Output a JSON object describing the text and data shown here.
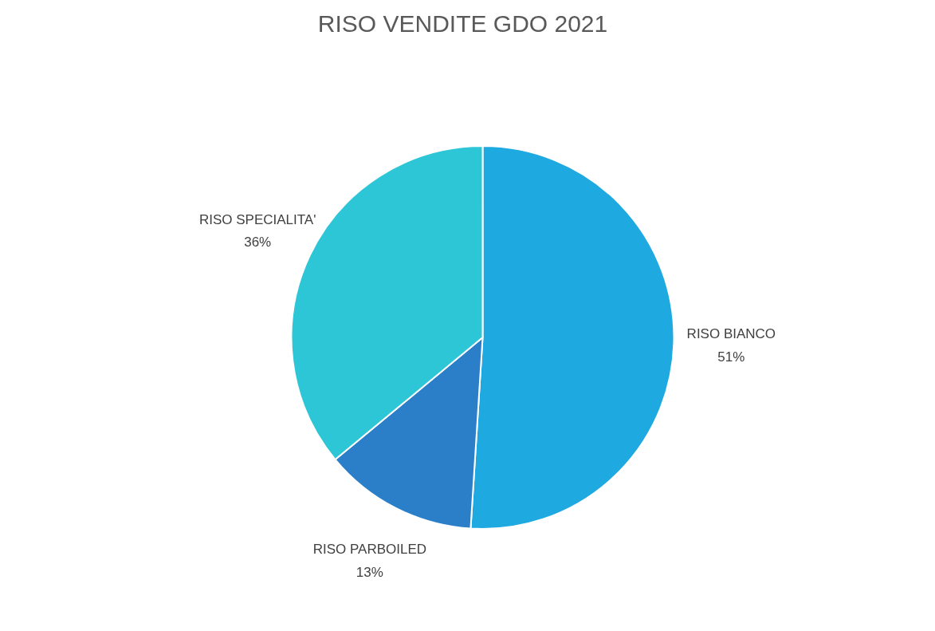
{
  "chart_data": {
    "type": "pie",
    "title": "RISO VENDITE GDO 2021",
    "categories": [
      "RISO BIANCO",
      "RISO PARBOILED",
      "RISO SPECIALITA'"
    ],
    "values": [
      51,
      13,
      36
    ],
    "value_labels": [
      "51%",
      "13%",
      "36%"
    ],
    "colors": [
      "#1fa9e1",
      "#2a7fc8",
      "#2dc6d6"
    ]
  }
}
